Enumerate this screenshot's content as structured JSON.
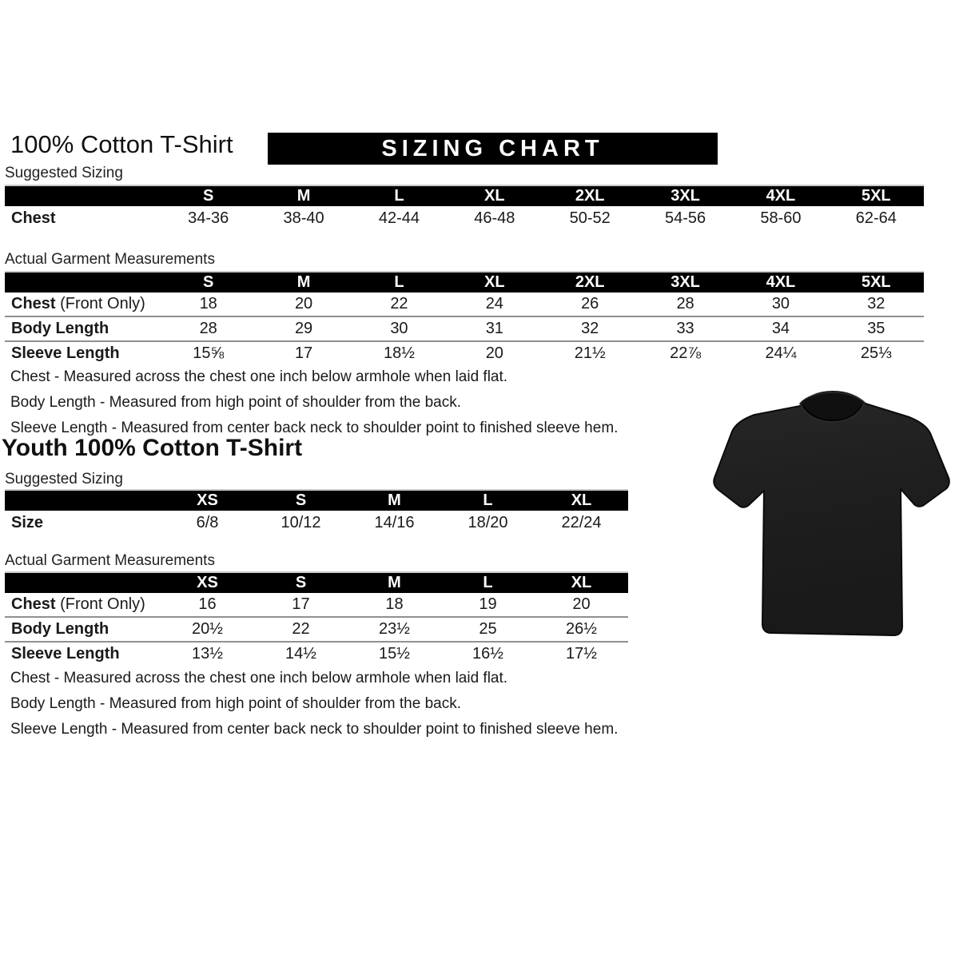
{
  "header": {
    "title": "100% Cotton T-Shirt",
    "banner": "SIZING CHART"
  },
  "adult": {
    "suggested_label": "Suggested Sizing",
    "suggested": {
      "columns": [
        "S",
        "M",
        "L",
        "XL",
        "2XL",
        "3XL",
        "4XL",
        "5XL"
      ],
      "rows": [
        {
          "label": "Chest",
          "suffix": "",
          "values": [
            "34-36",
            "38-40",
            "42-44",
            "46-48",
            "50-52",
            "54-56",
            "58-60",
            "62-64"
          ]
        }
      ]
    },
    "actual_label": "Actual Garment Measurements",
    "actual": {
      "columns": [
        "S",
        "M",
        "L",
        "XL",
        "2XL",
        "3XL",
        "4XL",
        "5XL"
      ],
      "rows": [
        {
          "label": "Chest",
          "suffix": " (Front Only)",
          "values": [
            "18",
            "20",
            "22",
            "24",
            "26",
            "28",
            "30",
            "32"
          ]
        },
        {
          "label": "Body Length",
          "suffix": "",
          "values": [
            "28",
            "29",
            "30",
            "31",
            "32",
            "33",
            "34",
            "35"
          ]
        },
        {
          "label": "Sleeve Length",
          "suffix": "",
          "values": [
            "15⅝",
            "17",
            "18½",
            "20",
            "21½",
            "22⅞",
            "24¼",
            "25⅓"
          ]
        }
      ]
    },
    "notes": [
      "Chest - Measured across the chest one inch below armhole when laid flat.",
      "Body Length - Measured from high point of shoulder from the back.",
      "Sleeve Length - Measured from center back neck to shoulder point to finished sleeve hem."
    ]
  },
  "youth": {
    "title": "Youth 100% Cotton T-Shirt",
    "suggested_label": "Suggested Sizing",
    "suggested": {
      "columns": [
        "XS",
        "S",
        "M",
        "L",
        "XL"
      ],
      "rows": [
        {
          "label": "Size",
          "suffix": "",
          "values": [
            "6/8",
            "10/12",
            "14/16",
            "18/20",
            "22/24"
          ]
        }
      ]
    },
    "actual_label": "Actual Garment Measurements",
    "actual": {
      "columns": [
        "XS",
        "S",
        "M",
        "L",
        "XL"
      ],
      "rows": [
        {
          "label": "Chest",
          "suffix": " (Front Only)",
          "values": [
            "16",
            "17",
            "18",
            "19",
            "20"
          ]
        },
        {
          "label": "Body Length",
          "suffix": "",
          "values": [
            "20½",
            "22",
            "23½",
            "25",
            "26½"
          ]
        },
        {
          "label": "Sleeve Length",
          "suffix": "",
          "values": [
            "13½",
            "14½",
            "15½",
            "16½",
            "17½"
          ]
        }
      ]
    },
    "notes": [
      "Chest - Measured across the chest one inch below armhole when laid flat.",
      "Body Length - Measured from high point of shoulder from the back.",
      "Sleeve Length - Measured from center back neck to shoulder point to finished sleeve hem."
    ]
  },
  "product_image": {
    "description": "black short-sleeve crew neck t-shirt flat lay photo",
    "shirt_color": "#1e1e1e"
  },
  "colors": {
    "banner_bg": "#000000",
    "banner_text": "#ffffff",
    "table_header_bg": "#000000",
    "table_header_text": "#ffffff",
    "row_divider": "#909090"
  }
}
